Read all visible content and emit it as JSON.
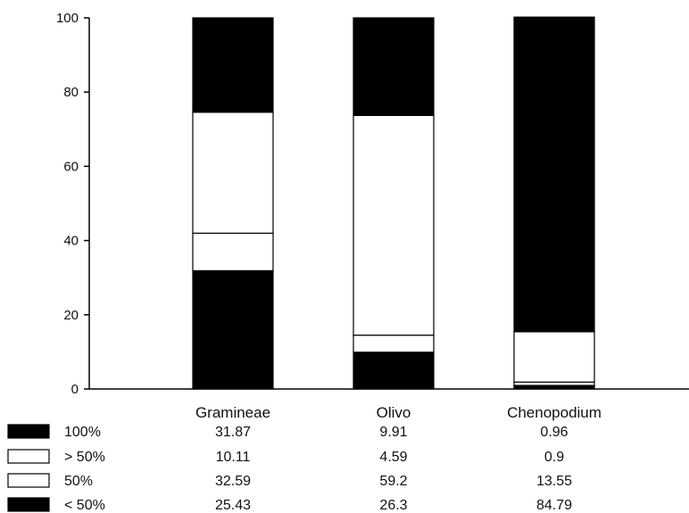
{
  "chart_data": {
    "type": "bar",
    "stacked": true,
    "categories": [
      "Gramineae",
      "Olivo",
      "Chenopodium"
    ],
    "ylim": [
      0,
      100
    ],
    "yticks": [
      "0",
      "20",
      "40",
      "60",
      "80",
      "100"
    ],
    "series": [
      {
        "name": "100%",
        "color": "#000000",
        "values": [
          31.87,
          9.91,
          0.96
        ],
        "display": [
          "31.87",
          "9.91",
          "0.96"
        ]
      },
      {
        "name": "> 50%",
        "color": "#ffffff",
        "values": [
          10.11,
          4.59,
          0.9
        ],
        "display": [
          "10.11",
          "4.59",
          "0.9"
        ]
      },
      {
        "name": "50%",
        "color": "#ffffff",
        "values": [
          32.59,
          59.2,
          13.55
        ],
        "display": [
          "32.59",
          "59.2",
          "13.55"
        ]
      },
      {
        "name": "< 50%",
        "color": "#000000",
        "values": [
          25.43,
          26.3,
          84.79
        ],
        "display": [
          "25.43",
          "26.3",
          "84.79"
        ]
      }
    ],
    "grid": false,
    "legend": "bottom-left data table"
  }
}
